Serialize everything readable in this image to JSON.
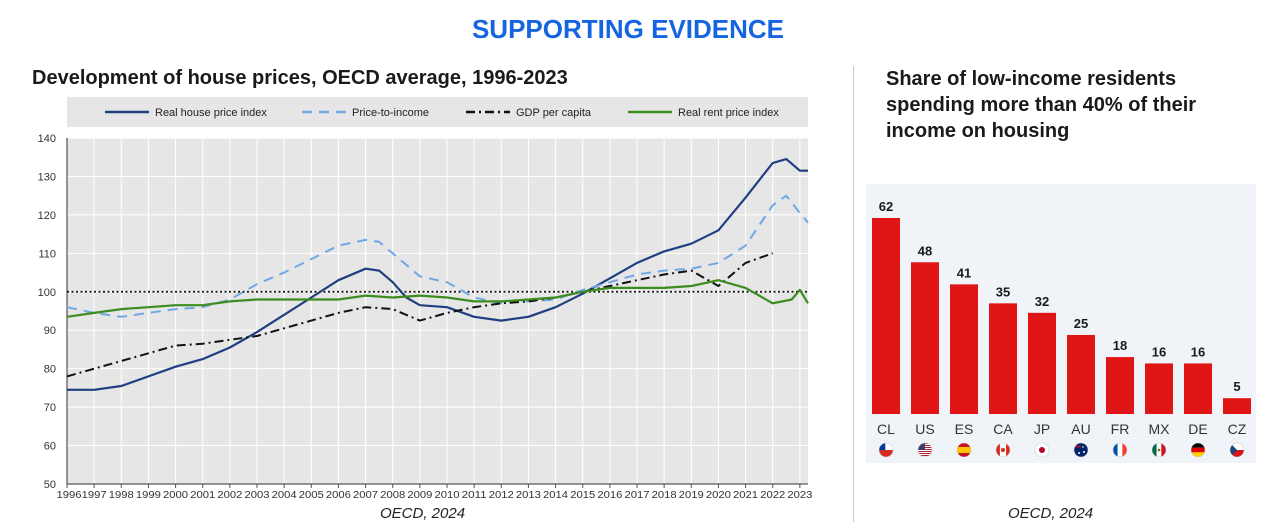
{
  "header": {
    "title": "SUPPORTING EVIDENCE"
  },
  "left_panel": {
    "title": "Development of house prices, OECD average, 1996-2023",
    "source": "OECD, 2024"
  },
  "right_panel": {
    "title": "Share of low-income residents spending more than 40% of their income on housing",
    "source": "OECD, 2024"
  },
  "chart_data": [
    {
      "type": "line",
      "title": "Development of house prices, OECD average, 1996-2023",
      "xlim": [
        1996,
        2023.3
      ],
      "ylim": [
        50,
        140
      ],
      "yticks": [
        50,
        60,
        70,
        80,
        90,
        100,
        110,
        120,
        130,
        140
      ],
      "xticks": [
        "1996",
        "1997",
        "1998",
        "1999",
        "2000",
        "2001",
        "2002",
        "2003",
        "2004",
        "2005",
        "2006",
        "2007",
        "2008",
        "2009",
        "2010",
        "2011",
        "2012",
        "2013",
        "2014",
        "2015",
        "2016",
        "2017",
        "2018",
        "2019",
        "2020",
        "2021",
        "2022",
        "2023"
      ],
      "reference_line": 100,
      "legend_position": "top",
      "series": [
        {
          "name": "Real house price index",
          "color": "#1f3f80",
          "style": "solid",
          "x": [
            1996,
            1997,
            1998,
            1999,
            2000,
            2001,
            2002,
            2003,
            2004,
            2005,
            2006,
            2007,
            2007.5,
            2008,
            2008.5,
            2009,
            2010,
            2011,
            2012,
            2013,
            2014,
            2015,
            2016,
            2017,
            2018,
            2019,
            2020,
            2021,
            2021.5,
            2022,
            2022.5,
            2023,
            2023.3
          ],
          "y": [
            74.5,
            74.5,
            75.5,
            78,
            80.5,
            82.5,
            85.5,
            89.5,
            94,
            98.5,
            103,
            106,
            105.5,
            102.5,
            98.5,
            96.5,
            96,
            93.5,
            92.5,
            93.5,
            96,
            99.5,
            103.5,
            107.5,
            110.5,
            112.5,
            116,
            124.5,
            129,
            133.5,
            134.5,
            131.5,
            131.5
          ]
        },
        {
          "name": "Price-to-income",
          "color": "#6fa8e4",
          "style": "dashed",
          "x": [
            1996,
            1997,
            1998,
            1999,
            2000,
            2001,
            2002,
            2003,
            2004,
            2005,
            2006,
            2007,
            2007.5,
            2008,
            2009,
            2010,
            2011,
            2012,
            2013,
            2014,
            2015,
            2016,
            2017,
            2018,
            2019,
            2020,
            2021,
            2022,
            2022.5,
            2023,
            2023.3
          ],
          "y": [
            96,
            94.5,
            93.5,
            94.5,
            95.5,
            96,
            98,
            102,
            105,
            108.5,
            112,
            113.5,
            113,
            110,
            104,
            102.5,
            98.5,
            97,
            97.5,
            98,
            100.5,
            102.5,
            104.5,
            105.5,
            106,
            107.5,
            112,
            122.5,
            125,
            120.5,
            118
          ]
        },
        {
          "name": "GDP per capita",
          "color": "#111111",
          "style": "dashdot",
          "x": [
            1996,
            1997,
            1998,
            1999,
            2000,
            2001,
            2002,
            2003,
            2004,
            2005,
            2006,
            2007,
            2008,
            2009,
            2010,
            2011,
            2012,
            2013,
            2014,
            2015,
            2016,
            2017,
            2018,
            2019,
            2020,
            2021,
            2022
          ],
          "y": [
            78,
            80,
            82,
            84,
            86,
            86.5,
            87.5,
            88.5,
            90.5,
            92.5,
            94.5,
            96,
            95.5,
            92.5,
            94.5,
            96,
            97,
            97.5,
            98.5,
            100,
            101.5,
            103,
            104.5,
            105.5,
            101.5,
            107.5,
            110
          ]
        },
        {
          "name": "Real rent price index",
          "color": "#3c8c1e",
          "style": "solid",
          "x": [
            1996,
            1997,
            1998,
            1999,
            2000,
            2001,
            2002,
            2003,
            2004,
            2005,
            2006,
            2007,
            2008,
            2009,
            2010,
            2011,
            2012,
            2013,
            2014,
            2015,
            2016,
            2017,
            2018,
            2019,
            2020,
            2021,
            2022,
            2022.7,
            2023,
            2023.3
          ],
          "y": [
            93.5,
            94.5,
            95.5,
            96,
            96.5,
            96.5,
            97.5,
            98,
            98,
            98,
            98,
            99,
            98.5,
            99,
            98.5,
            97.5,
            97.5,
            98,
            98.5,
            100,
            101,
            101,
            101,
            101.5,
            103,
            101,
            97,
            98,
            100.5,
            97
          ]
        }
      ]
    },
    {
      "type": "bar",
      "title": "Share of low-income residents spending more than 40% of their income on housing",
      "categories": [
        "CL",
        "US",
        "ES",
        "CA",
        "JP",
        "AU",
        "FR",
        "MX",
        "DE",
        "CZ"
      ],
      "values": [
        62,
        48,
        41,
        35,
        32,
        25,
        18,
        16,
        16,
        5
      ],
      "ylim": [
        0,
        70
      ],
      "bar_color": "#e01515",
      "flags": [
        "flag-chile",
        "flag-usa",
        "flag-spain",
        "flag-canada",
        "flag-japan",
        "flag-australia",
        "flag-france",
        "flag-mexico",
        "flag-germany",
        "flag-czechia"
      ]
    }
  ]
}
